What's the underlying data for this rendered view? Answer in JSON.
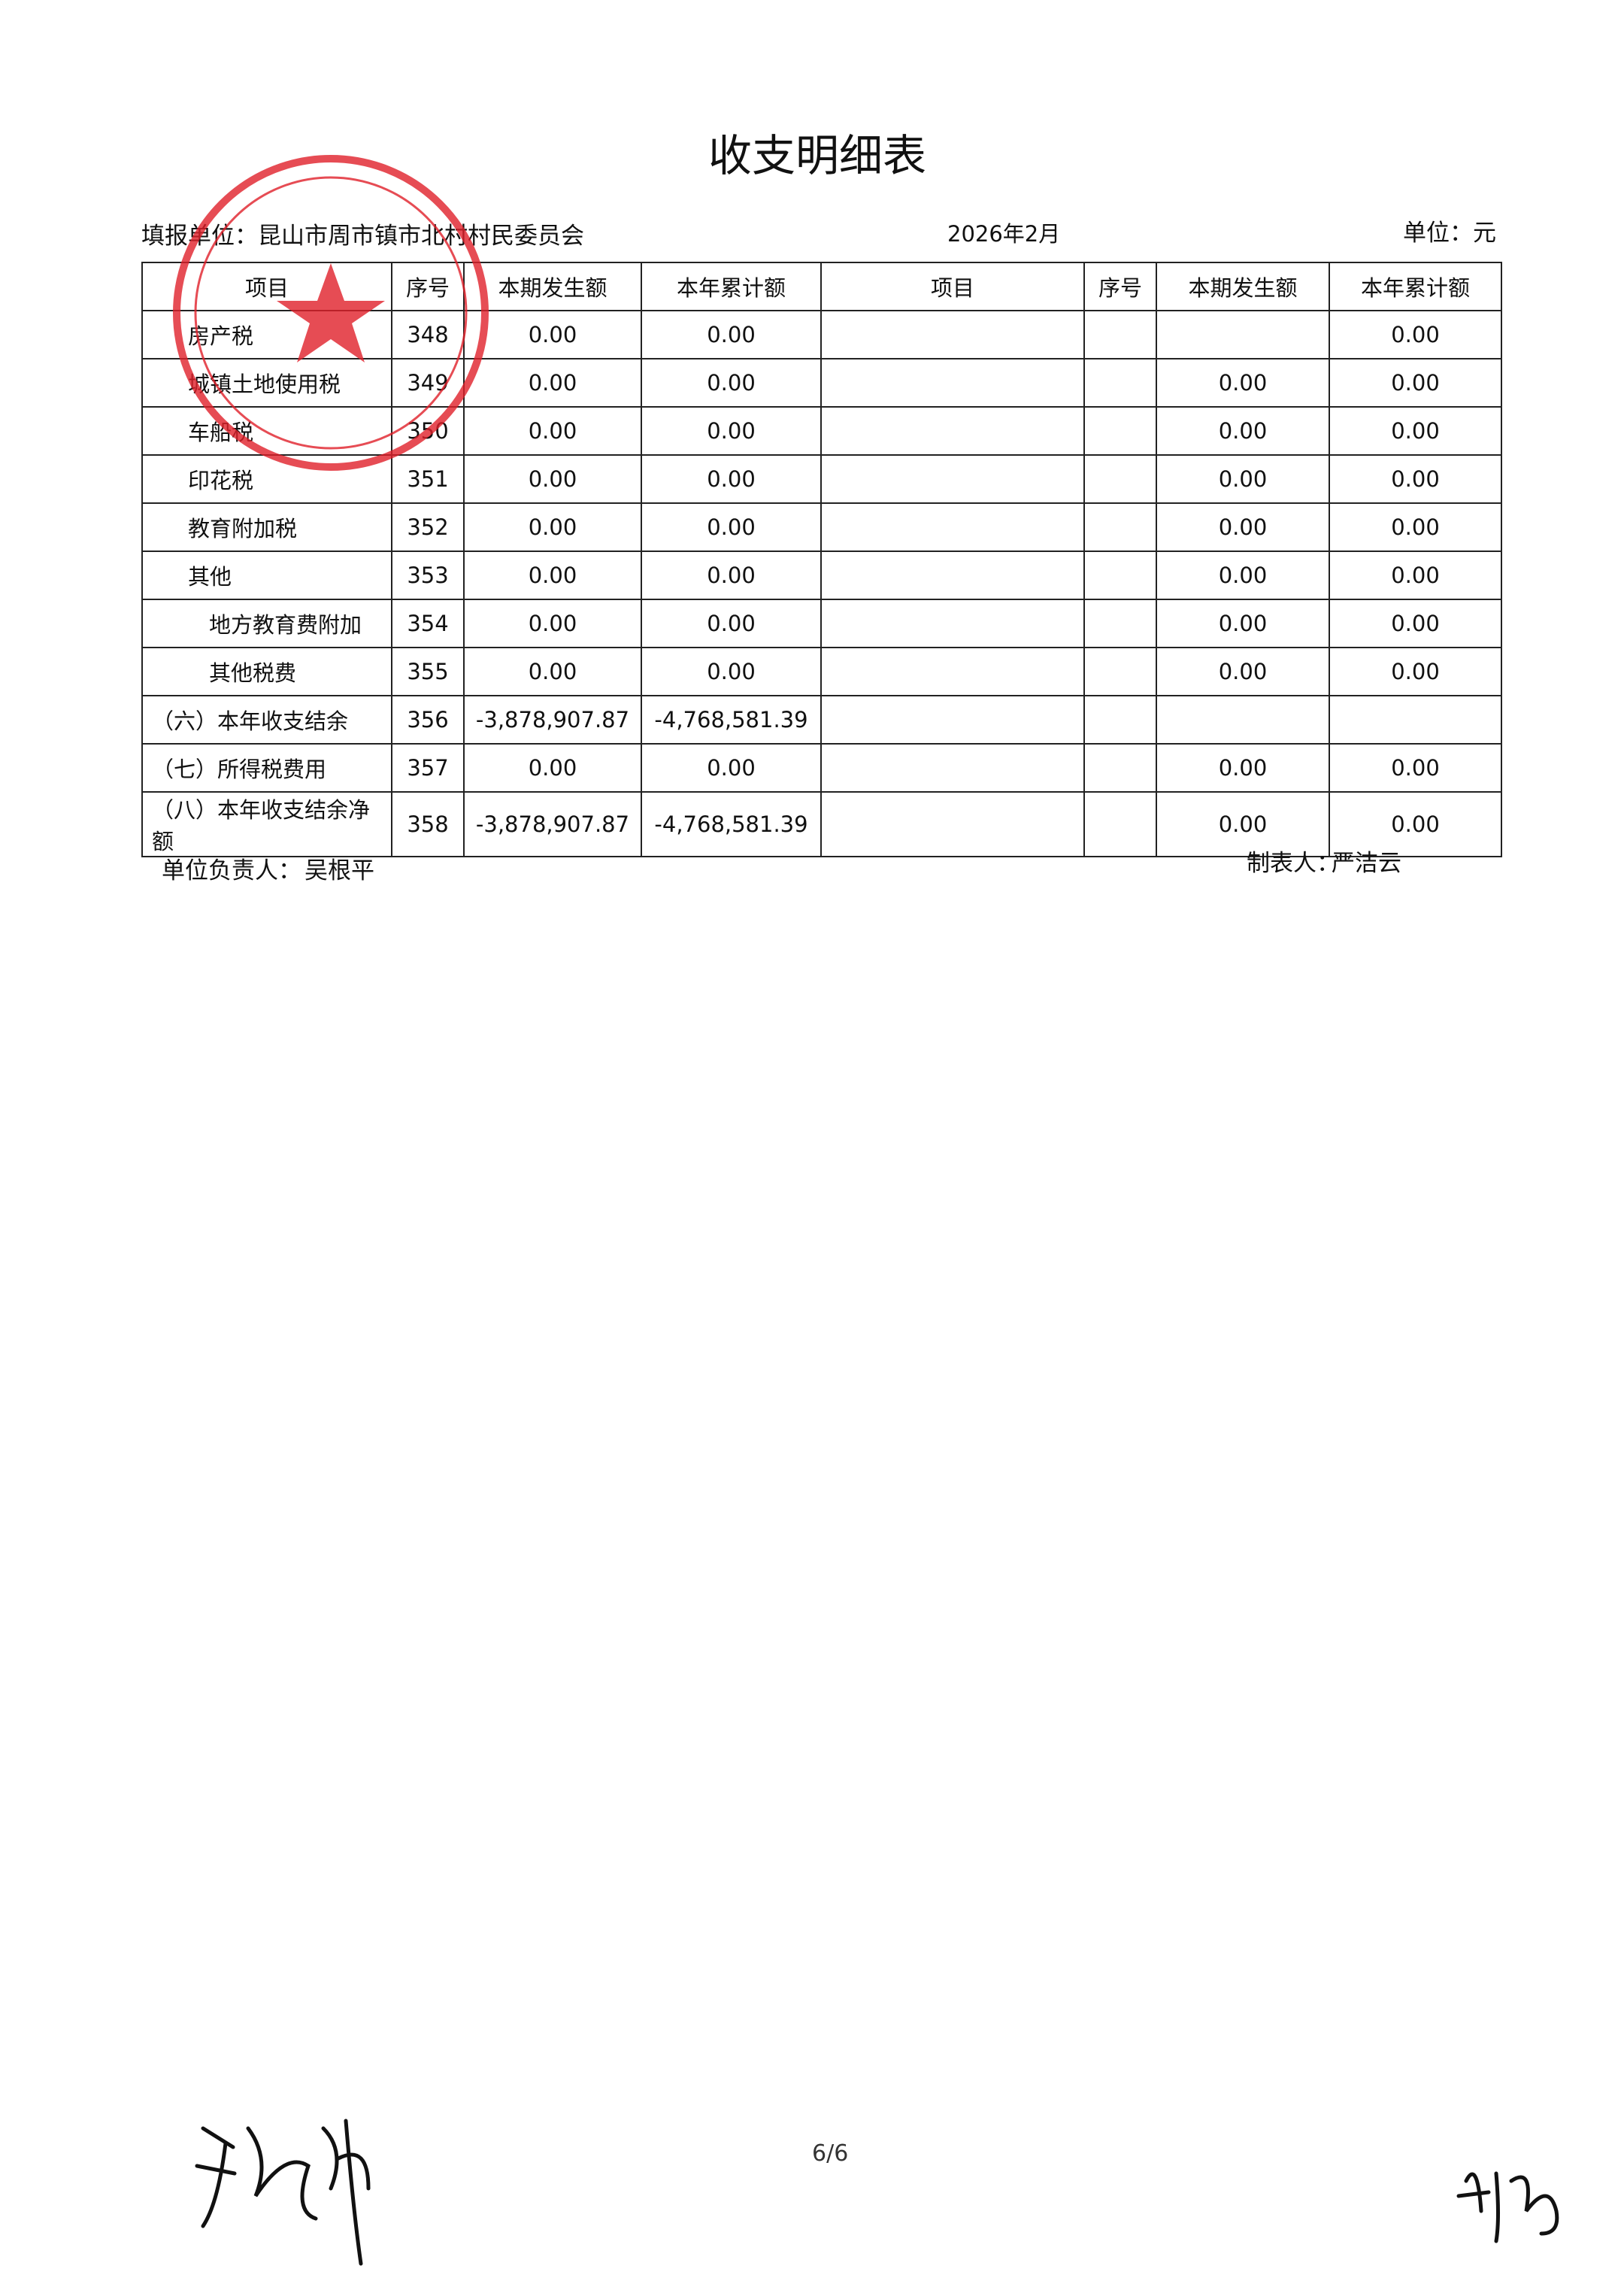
{
  "header": {
    "title": "收支明细表",
    "unit_label": "填报单位：昆山市周市镇市北村村民委员会",
    "period": "2026年2月",
    "currency": "单位：元"
  },
  "table": {
    "columns": [
      "项目",
      "序号",
      "本期发生额",
      "本年累计额",
      "项目",
      "序号",
      "本期发生额",
      "本年累计额"
    ],
    "rows": [
      [
        "房产税",
        "348",
        "0.00",
        "0.00",
        null,
        null,
        null,
        "0.00"
      ],
      [
        "城镇土地使用税",
        "349",
        "0.00",
        "0.00",
        null,
        null,
        "0.00",
        "0.00"
      ],
      [
        "车船税",
        "350",
        "0.00",
        "0.00",
        null,
        null,
        "0.00",
        "0.00"
      ],
      [
        "印花税",
        "351",
        "0.00",
        "0.00",
        null,
        null,
        "0.00",
        "0.00"
      ],
      [
        "教育附加税",
        "352",
        "0.00",
        "0.00",
        null,
        null,
        "0.00",
        "0.00"
      ],
      [
        "其他",
        "353",
        "0.00",
        "0.00",
        null,
        null,
        "0.00",
        "0.00"
      ],
      [
        "地方教育费附加",
        "354",
        "0.00",
        "0.00",
        null,
        null,
        "0.00",
        "0.00"
      ],
      [
        "其他税费",
        "355",
        "0.00",
        "0.00",
        null,
        null,
        "0.00",
        "0.00"
      ],
      [
        "（六）本年收支结余",
        "356",
        "-3,878,907.87",
        "-4,768,581.39",
        null,
        null,
        null,
        null
      ],
      [
        "（七）所得税费用",
        "357",
        "0.00",
        "0.00",
        null,
        null,
        "0.00",
        "0.00"
      ],
      [
        "（八）本年收支结余净额",
        "358",
        "-3,878,907.87",
        "-4,768,581.39",
        null,
        null,
        "0.00",
        "0.00"
      ]
    ]
  },
  "footer": {
    "principal_label": "单位负责人：",
    "principal": "吴根平",
    "preparer_label": "制表人：",
    "preparer": "严洁云",
    "page": "6/6"
  }
}
